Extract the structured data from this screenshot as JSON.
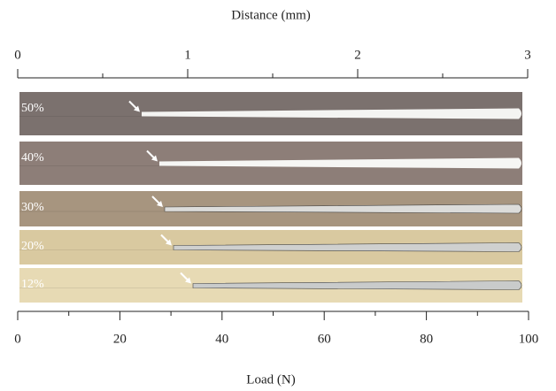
{
  "top_axis": {
    "label": "Distance (mm)",
    "lim": [
      0,
      3
    ],
    "ticks": [
      0,
      1,
      2,
      3
    ],
    "minor_ticks": [
      0.5,
      1.5,
      2.5
    ]
  },
  "bottom_axis": {
    "label": "Load (N)",
    "lim": [
      0,
      100
    ],
    "ticks": [
      0,
      20,
      40,
      60,
      80,
      100
    ],
    "minor_ticks": [
      10,
      30,
      50,
      70,
      90
    ]
  },
  "panels": [
    {
      "label": "50%"
    },
    {
      "label": "40%"
    },
    {
      "label": "30%"
    },
    {
      "label": "20%"
    },
    {
      "label": "12%"
    }
  ]
}
